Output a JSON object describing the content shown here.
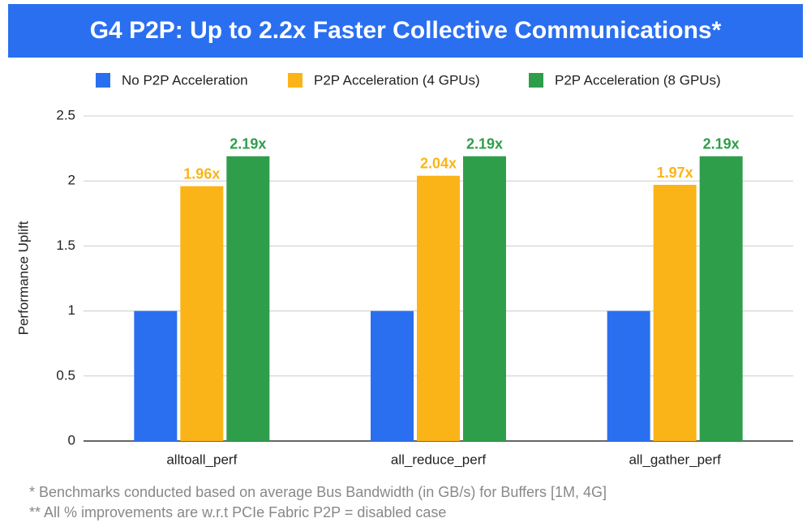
{
  "chart_data": {
    "type": "bar",
    "title": "G4 P2P: Up to 2.2x Faster Collective Communications*",
    "y_label": "Performance Uplift",
    "categories": [
      "alltoall_perf",
      "all_reduce_perf",
      "all_gather_perf"
    ],
    "series": [
      {
        "name": "No P2P Acceleration",
        "color": "#2a6ff0",
        "values": [
          1,
          1,
          1
        ]
      },
      {
        "name": "P2P Acceleration (4 GPUs)",
        "color": "#fbb418",
        "values": [
          1.96,
          2.04,
          1.97
        ],
        "value_labels": [
          "1.96x",
          "2.04x",
          "1.97x"
        ]
      },
      {
        "name": "P2P Acceleration (8 GPUs)",
        "color": "#2f9e4b",
        "values": [
          2.19,
          2.19,
          2.19
        ],
        "value_labels": [
          "2.19x",
          "2.19x",
          "2.19x"
        ]
      }
    ],
    "ylim": [
      0,
      2.5
    ],
    "yticks": [
      0,
      0.5,
      1,
      1.5,
      2,
      2.5
    ],
    "grid": true,
    "legend": "top",
    "footnotes": [
      "* Benchmarks conducted based on average Bus Bandwidth (in GB/s) for Buffers [1M, 4G]",
      "** All % improvements are w.r.t PCIe Fabric P2P = disabled case"
    ]
  }
}
